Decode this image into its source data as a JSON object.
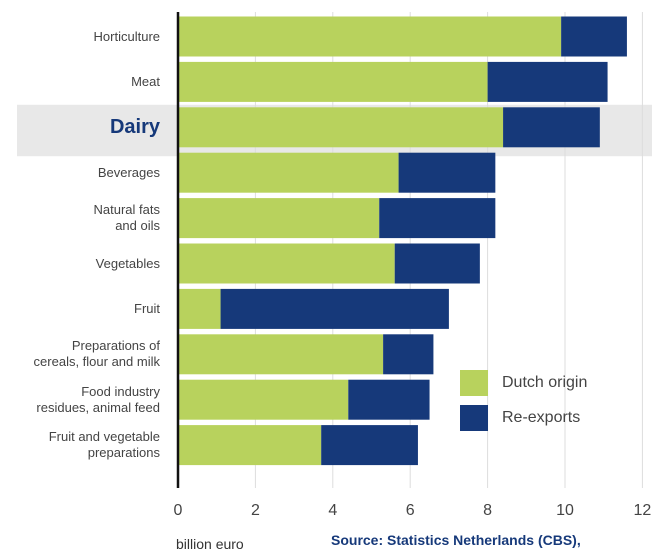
{
  "colors": {
    "dutch_origin": "#b8d25d",
    "re_exports": "#16397a",
    "highlight_band": "#e8e8e8",
    "grid": "#dddddd",
    "axis": "#111111"
  },
  "chart_data": {
    "type": "bar",
    "orientation": "horizontal",
    "stacked": true,
    "categories": [
      "Horticulture",
      "Meat",
      "Dairy",
      "Beverages",
      "Natural fats\nand oils",
      "Vegetables",
      "Fruit",
      "Preparations of\ncereals, flour and milk",
      "Food industry\nresidues, animal feed",
      "Fruit and vegetable\npreparations"
    ],
    "highlight_category": "Dairy",
    "series": [
      {
        "name": "Dutch origin",
        "values": [
          9.9,
          8.0,
          8.4,
          5.7,
          5.2,
          5.6,
          1.1,
          5.3,
          4.4,
          3.7
        ]
      },
      {
        "name": "Re-exports",
        "values": [
          1.7,
          3.1,
          2.5,
          2.5,
          3.0,
          2.2,
          5.9,
          1.3,
          2.1,
          2.5
        ]
      }
    ],
    "x_ticks": [
      "0",
      "2",
      "4",
      "6",
      "8",
      "10",
      "12"
    ],
    "xlim": [
      0,
      12
    ],
    "xlabel": "billion euro",
    "grid": true,
    "legend_position": "bottom-right"
  },
  "source_text": "Source: Statistics Netherlands (CBS),"
}
